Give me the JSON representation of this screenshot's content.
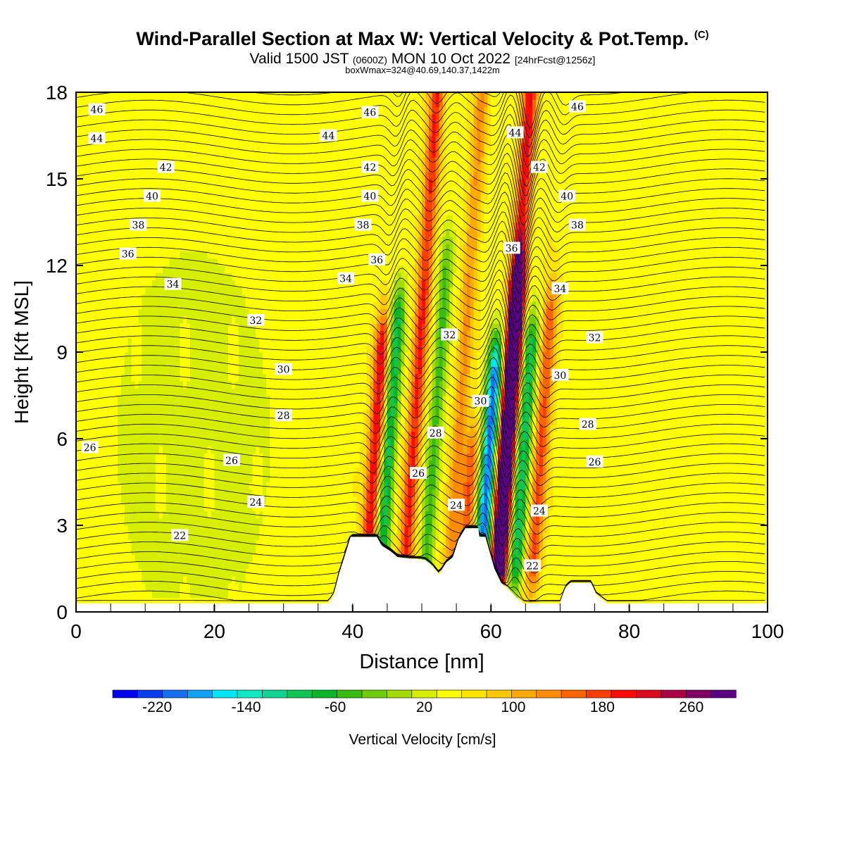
{
  "header": {
    "title": "Wind-Parallel Section at Max W: Vertical Velocity & Pot.Temp.",
    "copyright": "(C)",
    "valid_prefix": "Valid 1500 JST",
    "valid_zulu": "(0600Z)",
    "valid_date": "MON 10 Oct 2022",
    "forecast_info": "[24hrFcst@1256z]",
    "box_info": "boxWmax=324@40.69,140.37,1422m"
  },
  "colorbar": {
    "label": "Vertical Velocity [cm/s]",
    "tick_labels": [
      "-220",
      "-140",
      "-60",
      "20",
      "100",
      "180",
      "260"
    ],
    "tick_values": [
      -220,
      -140,
      -60,
      20,
      100,
      180,
      260
    ],
    "colors": [
      "#0000ee",
      "#0a3cf0",
      "#1570f0",
      "#10a0f4",
      "#00e8f8",
      "#10e8c4",
      "#10d494",
      "#10c454",
      "#0cb428",
      "#38bc10",
      "#70cc08",
      "#a4dc00",
      "#d6ee00",
      "#ffff00",
      "#ffe400",
      "#ffc800",
      "#ffaa00",
      "#ff8c00",
      "#ff6400",
      "#ff3c00",
      "#ff0a00",
      "#de0a20",
      "#ae0044",
      "#800064",
      "#580080"
    ],
    "range": [
      -260,
      300
    ],
    "step": 20
  },
  "chart_data": {
    "type": "contour",
    "xlabel": "Distance [nm]",
    "ylabel": "Height [Kft MSL]",
    "xlim": [
      0,
      100
    ],
    "ylim": [
      0,
      18
    ],
    "xticks": [
      0,
      20,
      40,
      60,
      80,
      100
    ],
    "yticks": [
      0,
      3,
      6,
      9,
      12,
      15,
      18
    ],
    "fill_field": "vertical velocity [cm/s]",
    "contour_field": "potential temperature",
    "velocity_bands": [
      {
        "x": 42.5,
        "peak": 150,
        "top_kft": 9
      },
      {
        "x": 44.5,
        "peak": -120,
        "top_kft": 10
      },
      {
        "x": 48,
        "peak": 130,
        "top_kft": 18
      },
      {
        "x": 51,
        "peak": -80,
        "top_kft": 12
      },
      {
        "x": 54.5,
        "peak": 70,
        "top_kft": 18
      },
      {
        "x": 56.5,
        "peak": 110,
        "top_kft": 5
      },
      {
        "x": 59,
        "peak": -230,
        "top_kft": 8
      },
      {
        "x": 61.5,
        "peak": 240,
        "top_kft": 11
      },
      {
        "x": 61.5,
        "peak": 150,
        "top_kft": 18
      },
      {
        "x": 64,
        "peak": -130,
        "top_kft": 9
      },
      {
        "x": 66.5,
        "peak": 110,
        "top_kft": 10
      }
    ],
    "terrain": [
      {
        "x": 0,
        "h_kft": 0.3
      },
      {
        "x": 36.5,
        "h_kft": 0.3
      },
      {
        "x": 37.3,
        "h_kft": 0.6
      },
      {
        "x": 38,
        "h_kft": 1.3
      },
      {
        "x": 38.8,
        "h_kft": 1.9
      },
      {
        "x": 39.7,
        "h_kft": 2.6
      },
      {
        "x": 43.5,
        "h_kft": 2.6
      },
      {
        "x": 44.2,
        "h_kft": 2.3
      },
      {
        "x": 45.5,
        "h_kft": 2.1
      },
      {
        "x": 46.5,
        "h_kft": 1.9
      },
      {
        "x": 50.5,
        "h_kft": 1.8
      },
      {
        "x": 51.5,
        "h_kft": 1.6
      },
      {
        "x": 52.5,
        "h_kft": 1.3
      },
      {
        "x": 53.5,
        "h_kft": 1.7
      },
      {
        "x": 54.5,
        "h_kft": 1.9
      },
      {
        "x": 55.3,
        "h_kft": 2.5
      },
      {
        "x": 56.3,
        "h_kft": 2.9
      },
      {
        "x": 58.2,
        "h_kft": 2.9
      },
      {
        "x": 58.3,
        "h_kft": 2.6
      },
      {
        "x": 59.2,
        "h_kft": 2.6
      },
      {
        "x": 60.5,
        "h_kft": 1.5
      },
      {
        "x": 61.5,
        "h_kft": 1.0
      },
      {
        "x": 62.5,
        "h_kft": 0.8
      },
      {
        "x": 63.7,
        "h_kft": 0.5
      },
      {
        "x": 64.7,
        "h_kft": 0.3
      },
      {
        "x": 70,
        "h_kft": 0.3
      },
      {
        "x": 70.7,
        "h_kft": 0.8
      },
      {
        "x": 71.5,
        "h_kft": 1.0
      },
      {
        "x": 74.5,
        "h_kft": 1.0
      },
      {
        "x": 75.2,
        "h_kft": 0.6
      },
      {
        "x": 76.8,
        "h_kft": 0.3
      },
      {
        "x": 100,
        "h_kft": 0.3
      }
    ],
    "theta_labels": [
      {
        "text": "46",
        "x": 3,
        "y": 17.4
      },
      {
        "text": "44",
        "x": 3,
        "y": 16.4
      },
      {
        "text": "42",
        "x": 13,
        "y": 15.4
      },
      {
        "text": "40",
        "x": 11,
        "y": 14.4
      },
      {
        "text": "38",
        "x": 9,
        "y": 13.4
      },
      {
        "text": "36",
        "x": 7.5,
        "y": 12.4
      },
      {
        "text": "34",
        "x": 14,
        "y": 11.35
      },
      {
        "text": "32",
        "x": 26,
        "y": 10.1
      },
      {
        "text": "30",
        "x": 30,
        "y": 8.4
      },
      {
        "text": "28",
        "x": 30,
        "y": 6.8
      },
      {
        "text": "26",
        "x": 2,
        "y": 5.7
      },
      {
        "text": "26",
        "x": 22.5,
        "y": 5.25
      },
      {
        "text": "24",
        "x": 26,
        "y": 3.8
      },
      {
        "text": "22",
        "x": 15,
        "y": 2.65
      },
      {
        "text": "46",
        "x": 42.5,
        "y": 17.3
      },
      {
        "text": "44",
        "x": 36.5,
        "y": 16.5
      },
      {
        "text": "42",
        "x": 42.5,
        "y": 15.4
      },
      {
        "text": "40",
        "x": 42.5,
        "y": 14.4
      },
      {
        "text": "38",
        "x": 41.5,
        "y": 13.4
      },
      {
        "text": "36",
        "x": 43.5,
        "y": 12.2
      },
      {
        "text": "34",
        "x": 39,
        "y": 11.55
      },
      {
        "text": "32",
        "x": 54,
        "y": 9.6
      },
      {
        "text": "30",
        "x": 58.5,
        "y": 7.3
      },
      {
        "text": "28",
        "x": 52,
        "y": 6.2
      },
      {
        "text": "26",
        "x": 49.5,
        "y": 4.8
      },
      {
        "text": "24",
        "x": 55,
        "y": 3.7
      },
      {
        "text": "22",
        "x": 66,
        "y": 1.6
      },
      {
        "text": "24",
        "x": 67,
        "y": 3.5
      },
      {
        "text": "44",
        "x": 63.5,
        "y": 16.6
      },
      {
        "text": "42",
        "x": 67,
        "y": 15.4
      },
      {
        "text": "36",
        "x": 63,
        "y": 12.6
      },
      {
        "text": "46",
        "x": 72.5,
        "y": 17.5
      },
      {
        "text": "40",
        "x": 71,
        "y": 14.4
      },
      {
        "text": "38",
        "x": 72.5,
        "y": 13.4
      },
      {
        "text": "34",
        "x": 70,
        "y": 11.2
      },
      {
        "text": "32",
        "x": 75,
        "y": 9.5
      },
      {
        "text": "30",
        "x": 70,
        "y": 8.2
      },
      {
        "text": "28",
        "x": 74,
        "y": 6.5
      },
      {
        "text": "26",
        "x": 75,
        "y": 5.2
      }
    ]
  }
}
